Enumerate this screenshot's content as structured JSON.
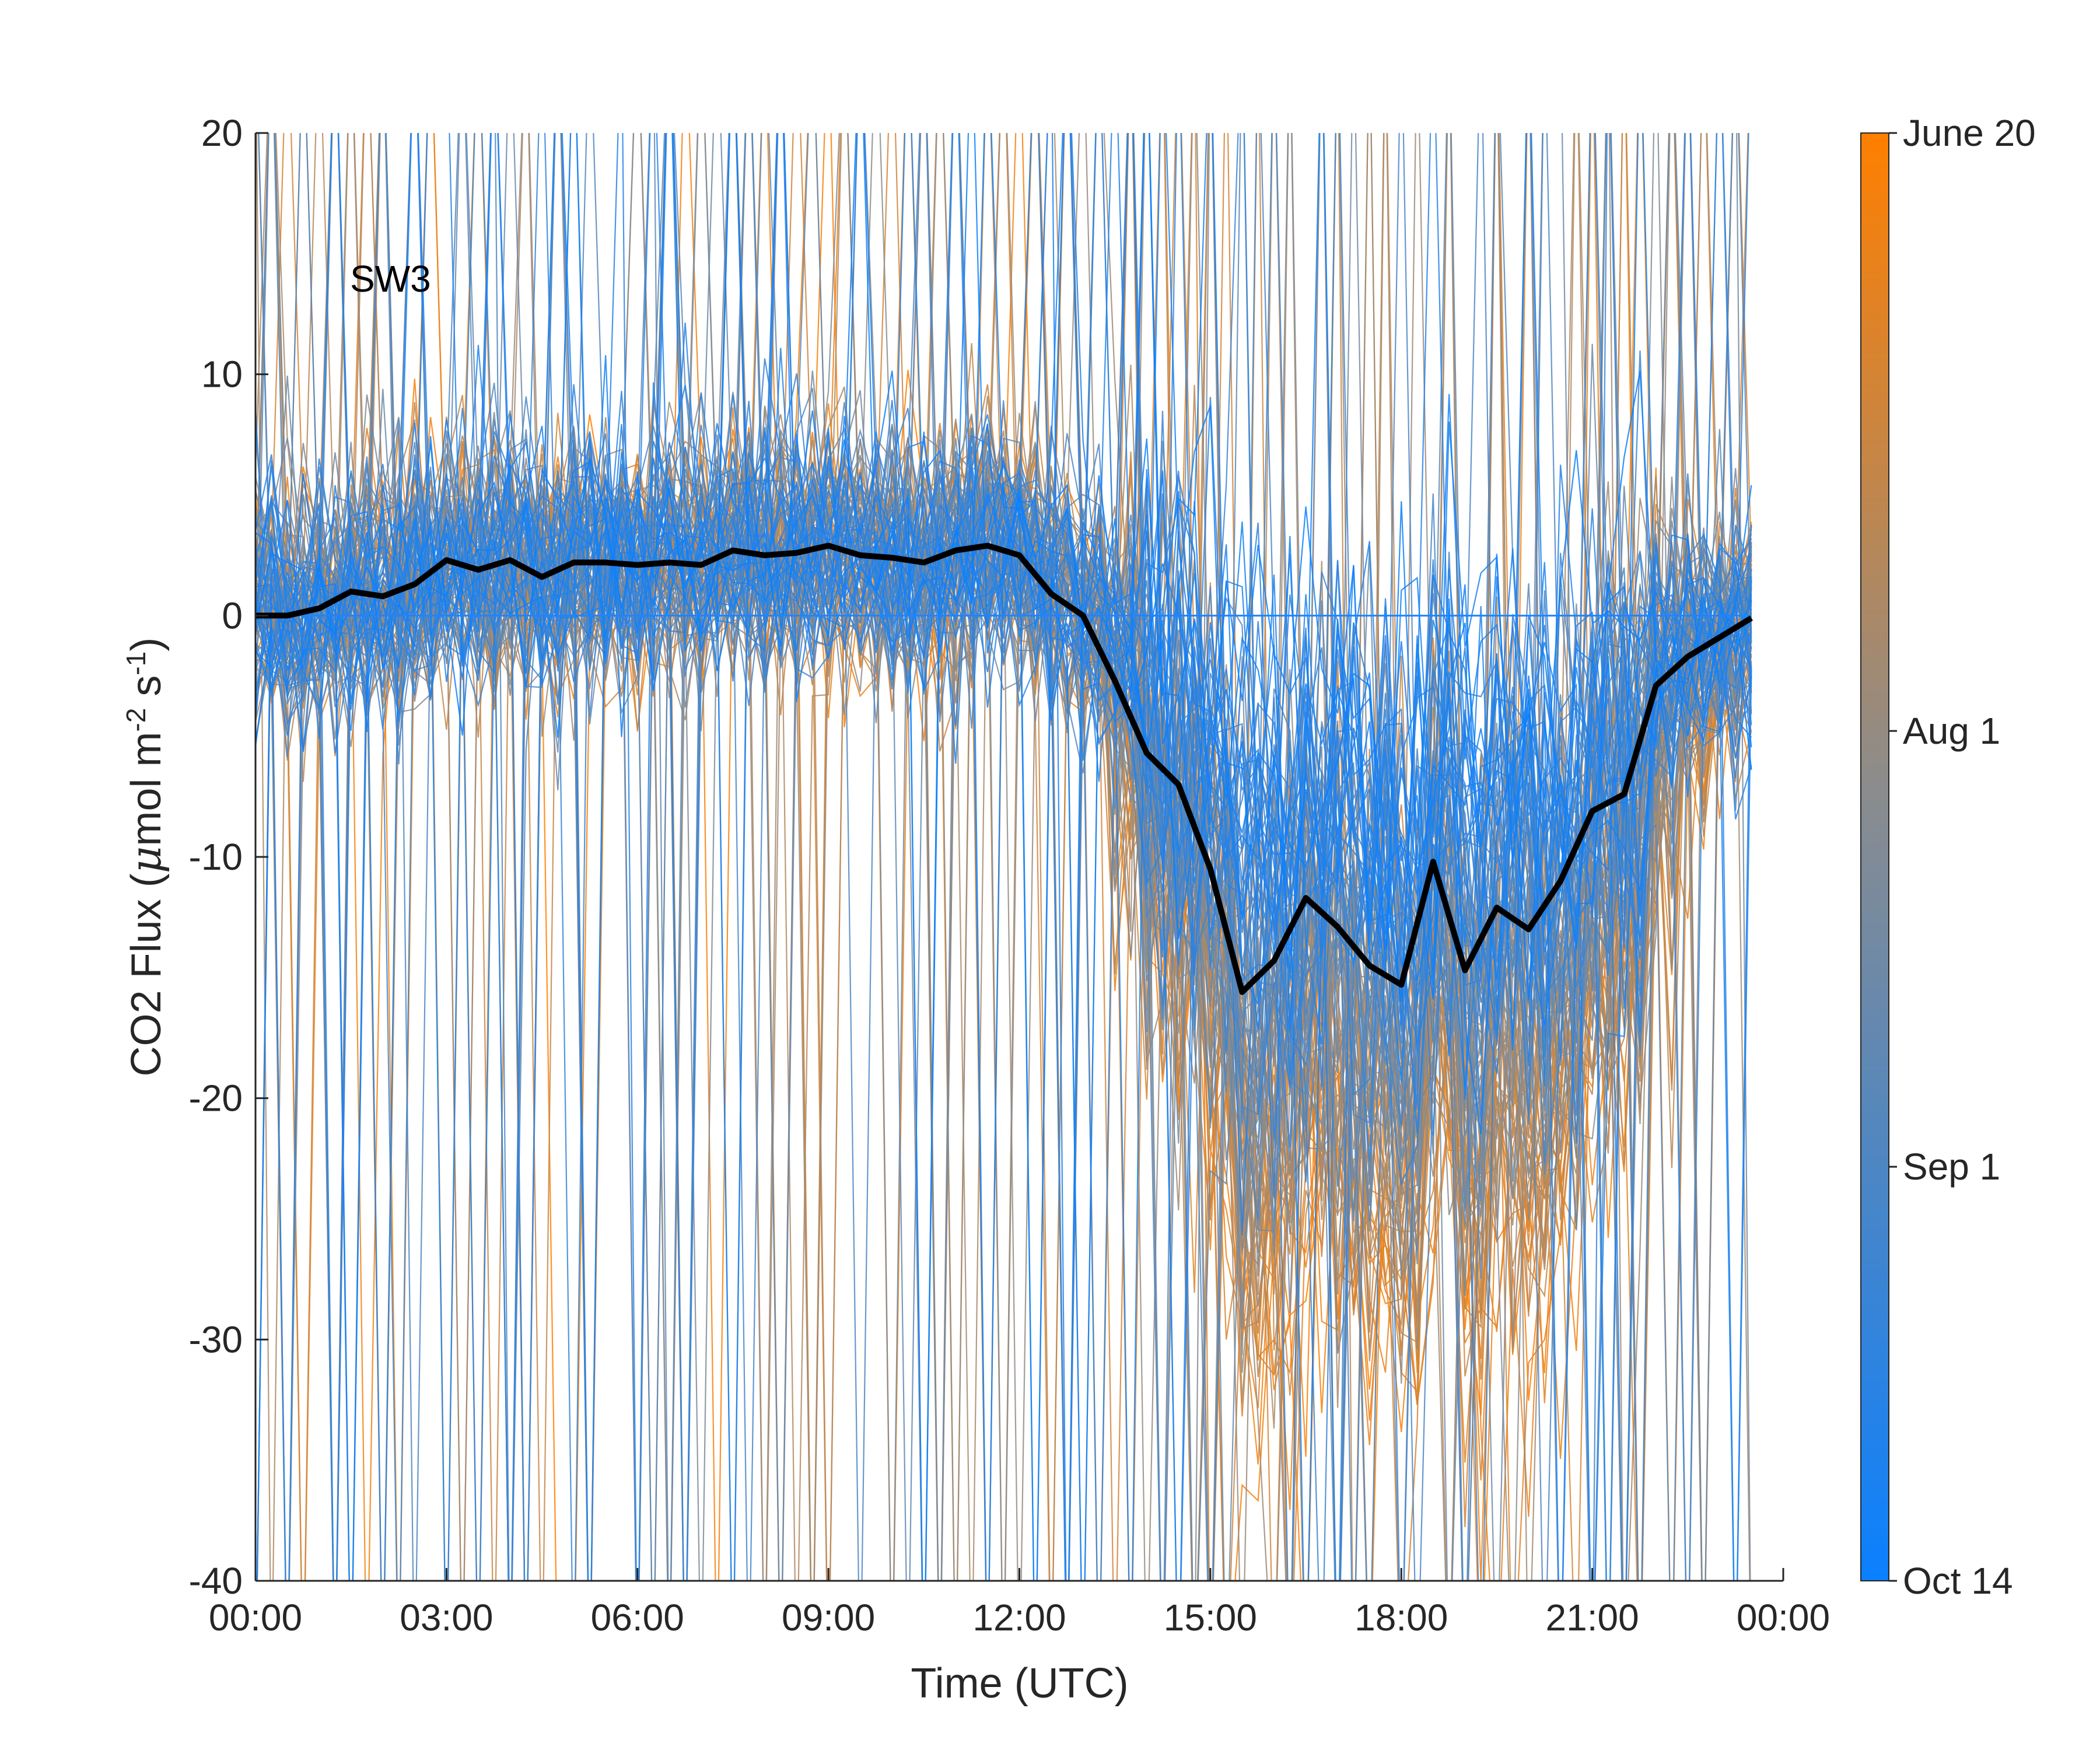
{
  "chart_data": {
    "type": "line",
    "xlabel": "Time (UTC)",
    "ylabel_main": "CO2 Flux (",
    "ylabel_mu": "μ",
    "ylabel_unit": "mol m",
    "ylabel_exp1": "-2",
    "ylabel_s": " s",
    "ylabel_exp2": "-1",
    "ylabel_close": ")",
    "annotation": "SW3",
    "ylim": [
      -40,
      20
    ],
    "yticks": [
      20,
      10,
      0,
      -10,
      -20,
      -30,
      -40
    ],
    "xlim_hours": [
      0,
      24
    ],
    "xticks_hours": [
      0,
      3,
      6,
      9,
      12,
      15,
      18,
      21,
      24
    ],
    "xtick_labels": [
      "00:00",
      "03:00",
      "06:00",
      "09:00",
      "12:00",
      "15:00",
      "18:00",
      "21:00",
      "00:00"
    ],
    "colorbar": {
      "labels": [
        "June 20",
        "Aug 1",
        "Sep 1",
        "Oct 14"
      ],
      "label_positions": [
        0,
        0.413,
        0.714,
        1
      ],
      "top_color": "#ff7f00",
      "mid_color": "#8c8c8c",
      "bottom_color": "#0a80ff"
    },
    "zero_line_color": "#1f84ff",
    "mean_line_color": "#000000",
    "individual_days_count": 116,
    "mean_series": {
      "name": "",
      "x_hours": [
        0,
        0.5,
        1,
        1.5,
        2,
        2.5,
        3,
        3.5,
        4,
        4.5,
        5,
        5.5,
        6,
        6.5,
        7,
        7.5,
        8,
        8.5,
        9,
        9.5,
        10,
        10.5,
        11,
        11.5,
        12,
        12.5,
        13,
        13.5,
        14,
        14.5,
        15,
        15.5,
        16,
        16.5,
        17,
        17.5,
        18,
        18.5,
        19,
        19.5,
        20,
        20.5,
        21,
        21.5,
        22,
        22.5,
        23,
        23.5
      ],
      "y": [
        0,
        0,
        0.3,
        1.0,
        0.8,
        1.3,
        2.3,
        1.9,
        2.3,
        1.6,
        2.2,
        2.2,
        2.1,
        2.2,
        2.1,
        2.7,
        2.5,
        2.6,
        2.9,
        2.5,
        2.4,
        2.2,
        2.7,
        2.9,
        2.5,
        0.9,
        0,
        -2.7,
        -5.7,
        -7.0,
        -10.5,
        -15.6,
        -14.3,
        -11.7,
        -12.9,
        -14.5,
        -15.3,
        -10.2,
        -14.7,
        -12.1,
        -13.0,
        -11.0,
        -8.1,
        -7.4,
        -2.9,
        -1.7,
        -0.9,
        -0.1
      ]
    }
  }
}
